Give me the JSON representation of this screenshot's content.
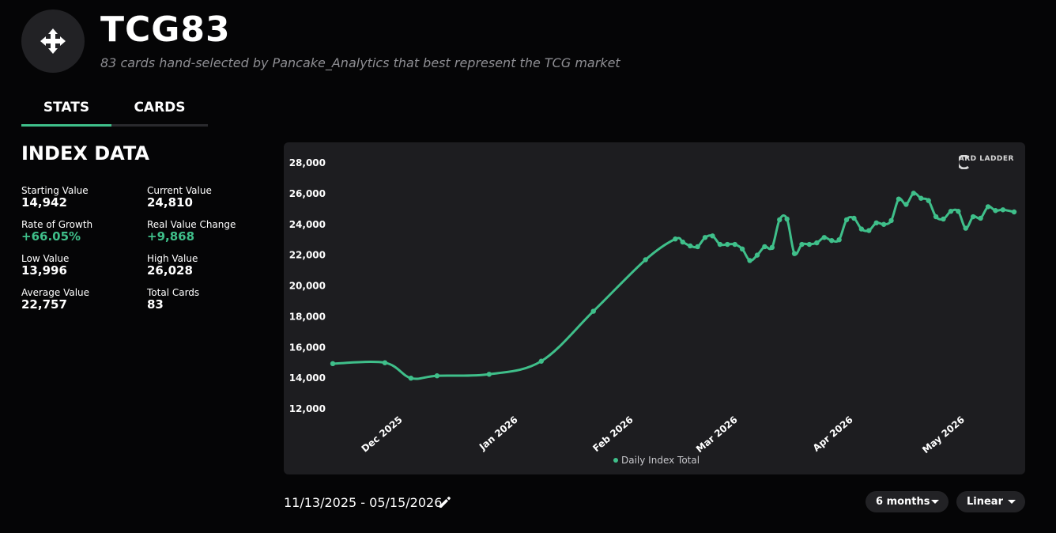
{
  "header": {
    "icon": "gamepad-icon",
    "title": "TCG83",
    "subtitle": "83 cards hand-selected by Pancake_Analytics that best represent the TCG market"
  },
  "tabs": [
    {
      "label": "STATS",
      "active": true
    },
    {
      "label": "CARDS",
      "active": false
    }
  ],
  "index_data": {
    "title": "INDEX DATA",
    "stats": [
      {
        "label": "Starting Value",
        "value": "14,942"
      },
      {
        "label": "Current Value",
        "value": "24,810"
      },
      {
        "label": "Rate of Growth",
        "value": "+66.05%"
      },
      {
        "label": "Real Value Change",
        "value": "+9,868"
      },
      {
        "label": "Low Value",
        "value": "13,996"
      },
      {
        "label": "High Value",
        "value": "26,028"
      },
      {
        "label": "Average Value",
        "value": "22,757"
      },
      {
        "label": "Total Cards",
        "value": "83"
      }
    ]
  },
  "colors": {
    "accent": "#3fbf8a"
  },
  "brand": {
    "text": "ARD LADDER"
  },
  "chart_data": {
    "type": "line",
    "ylim": [
      12000,
      28000
    ],
    "yticks": [
      "12,000",
      "14,000",
      "16,000",
      "18,000",
      "20,000",
      "22,000",
      "24,000",
      "26,000",
      "28,000"
    ],
    "xticks": [
      "Dec 2025",
      "Jan 2026",
      "Feb 2026",
      "Mar 2026",
      "Apr 2026",
      "May 2026"
    ],
    "xlim": [
      "2025-11-13",
      "2026-05-15"
    ],
    "grid": false,
    "legend": "bottom-center",
    "series": [
      {
        "name": "Daily Index Total",
        "color": "#3fbf8a",
        "points": [
          [
            "2025-11-13",
            14942
          ],
          [
            "2025-11-27",
            15000
          ],
          [
            "2025-12-04",
            13996
          ],
          [
            "2025-12-11",
            14150
          ],
          [
            "2025-12-25",
            14250
          ],
          [
            "2026-01-08",
            15100
          ],
          [
            "2026-01-22",
            18350
          ],
          [
            "2026-02-05",
            21700
          ],
          [
            "2026-02-13",
            23050
          ],
          [
            "2026-02-15",
            22850
          ],
          [
            "2026-02-17",
            22600
          ],
          [
            "2026-02-19",
            22550
          ],
          [
            "2026-02-21",
            23150
          ],
          [
            "2026-02-23",
            23250
          ],
          [
            "2026-02-25",
            22700
          ],
          [
            "2026-02-27",
            22700
          ],
          [
            "2026-03-01",
            22700
          ],
          [
            "2026-03-03",
            22400
          ],
          [
            "2026-03-05",
            21650
          ],
          [
            "2026-03-07",
            22000
          ],
          [
            "2026-03-09",
            22550
          ],
          [
            "2026-03-11",
            22500
          ],
          [
            "2026-03-13",
            24300
          ],
          [
            "2026-03-15",
            24350
          ],
          [
            "2026-03-17",
            22100
          ],
          [
            "2026-03-19",
            22700
          ],
          [
            "2026-03-21",
            22700
          ],
          [
            "2026-03-23",
            22800
          ],
          [
            "2026-03-25",
            23150
          ],
          [
            "2026-03-27",
            22950
          ],
          [
            "2026-03-29",
            23000
          ],
          [
            "2026-03-31",
            24300
          ],
          [
            "2026-04-02",
            24400
          ],
          [
            "2026-04-04",
            23700
          ],
          [
            "2026-04-06",
            23600
          ],
          [
            "2026-04-08",
            24100
          ],
          [
            "2026-04-10",
            24000
          ],
          [
            "2026-04-12",
            24250
          ],
          [
            "2026-04-14",
            25650
          ],
          [
            "2026-04-16",
            25300
          ],
          [
            "2026-04-18",
            26028
          ],
          [
            "2026-04-20",
            25700
          ],
          [
            "2026-04-22",
            25550
          ],
          [
            "2026-04-24",
            24500
          ],
          [
            "2026-04-26",
            24350
          ],
          [
            "2026-04-28",
            24850
          ],
          [
            "2026-04-30",
            24850
          ],
          [
            "2026-05-02",
            23750
          ],
          [
            "2026-05-04",
            24500
          ],
          [
            "2026-05-06",
            24400
          ],
          [
            "2026-05-08",
            25150
          ],
          [
            "2026-05-10",
            24900
          ],
          [
            "2026-05-12",
            24950
          ],
          [
            "2026-05-15",
            24810
          ]
        ]
      }
    ]
  },
  "date_range": {
    "label": "11/13/2025 - 05/15/2026"
  },
  "controls": {
    "range_label": "6 months",
    "scale_label": "Linear"
  }
}
